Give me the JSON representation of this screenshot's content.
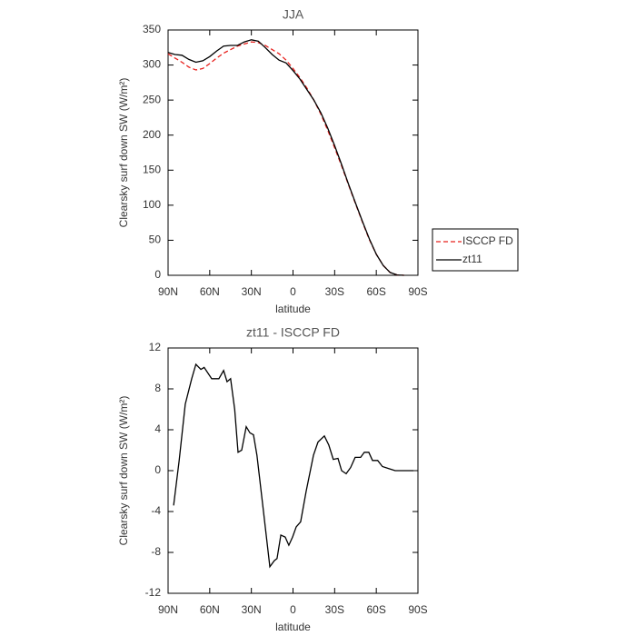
{
  "chart_data": [
    {
      "type": "line",
      "title": "JJA",
      "xlabel": "latitude",
      "ylabel": "Clearsky surf down SW (W/m²)",
      "x": [
        90,
        85,
        80,
        75,
        70,
        65,
        60,
        55,
        50,
        45,
        40,
        35,
        30,
        25,
        20,
        15,
        10,
        5,
        0,
        -5,
        -10,
        -15,
        -20,
        -25,
        -30,
        -35,
        -40,
        -45,
        -50,
        -55,
        -60,
        -65,
        -70,
        -75,
        -80
      ],
      "series": [
        {
          "name": "ISCCP FD",
          "color": "#e8201c",
          "style": "dashed",
          "values": [
            316,
            310,
            304,
            297,
            293,
            295,
            302,
            310,
            317,
            322,
            327,
            330,
            333,
            332,
            328,
            322,
            316,
            307,
            295,
            282,
            267,
            250,
            230,
            207,
            182,
            156,
            129,
            102,
            76,
            51,
            30,
            14,
            4,
            0.5,
            0
          ]
        },
        {
          "name": "zt11",
          "color": "#000000",
          "style": "solid",
          "values": [
            318,
            315,
            314,
            308,
            304,
            306,
            312,
            320,
            327,
            328,
            328,
            333,
            336,
            334,
            325,
            315,
            307,
            303,
            292,
            280,
            265,
            250,
            232,
            210,
            185,
            158,
            130,
            103,
            77,
            52,
            30,
            14,
            4,
            0.5,
            0
          ]
        }
      ],
      "xlim": [
        90,
        -90
      ],
      "xticks": [
        {
          "value": 90,
          "label": "90N"
        },
        {
          "value": 60,
          "label": "60N"
        },
        {
          "value": 30,
          "label": "30N"
        },
        0,
        {
          "value": -30,
          "label": "30S"
        },
        {
          "value": -60,
          "label": "60S"
        },
        {
          "value": -90,
          "label": "90S"
        }
      ],
      "ylim": [
        0,
        350
      ],
      "yticks": [
        0,
        50,
        100,
        150,
        200,
        250,
        300,
        350
      ],
      "legend": "outside-right"
    },
    {
      "type": "line",
      "title": "zt11 - ISCCP FD",
      "xlabel": "latitude",
      "ylabel": "Clearsky surf down SW (W/m²)",
      "x": [
        86,
        82,
        77.6,
        73,
        70,
        66.4,
        64,
        58.6,
        53.4,
        50,
        47.5,
        45,
        42,
        39.6,
        37,
        33.7,
        31,
        28.5,
        26,
        21.3,
        16.7,
        13.4,
        11.5,
        8.8,
        5.6,
        3,
        0.3,
        -2.3,
        -5.5,
        -9.5,
        -14.7,
        -18,
        -22.6,
        -25.8,
        -29,
        -32.4,
        -35,
        -38.3,
        -41.5,
        -44.8,
        -48.7,
        -51.4,
        -54.6,
        -57.3,
        -61,
        -64.4,
        -69,
        -73.6,
        -80,
        -86.7
      ],
      "series": [
        {
          "color": "#000000",
          "style": "solid",
          "values": [
            -3.4,
            1,
            6.5,
            9,
            10.4,
            9.9,
            10.1,
            9,
            9,
            9.8,
            8.7,
            9,
            6,
            1.8,
            2,
            4.3,
            3.7,
            3.5,
            1.5,
            -4,
            -9.4,
            -8.8,
            -8.6,
            -6.3,
            -6.5,
            -7.3,
            -6.5,
            -5.5,
            -5,
            -2,
            1.5,
            2.8,
            3.4,
            2.5,
            1.1,
            1.2,
            0,
            -0.3,
            0.3,
            1.3,
            1.3,
            1.8,
            1.8,
            1,
            1,
            0.4,
            0.2,
            0,
            0,
            0
          ]
        }
      ],
      "xlim": [
        90,
        -90
      ],
      "xticks": [
        {
          "value": 90,
          "label": "90N"
        },
        {
          "value": 60,
          "label": "60N"
        },
        {
          "value": 30,
          "label": "30N"
        },
        0,
        {
          "value": -30,
          "label": "30S"
        },
        {
          "value": -60,
          "label": "60S"
        },
        {
          "value": -90,
          "label": "90S"
        }
      ],
      "ylim": [
        -12,
        12
      ],
      "yticks": [
        -12,
        -8,
        -4,
        0,
        4,
        8,
        12
      ]
    }
  ]
}
